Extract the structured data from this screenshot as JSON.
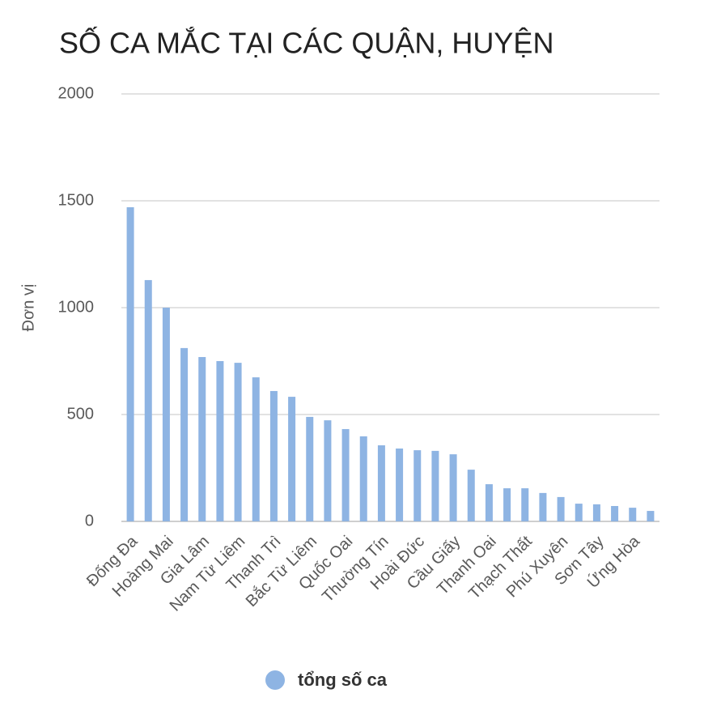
{
  "chart_data": {
    "type": "bar",
    "title": "SỐ CA MẮC TẠI CÁC QUẬN, HUYỆN",
    "y_label": "Đơn vị",
    "categories": [
      "Đống Đa",
      null,
      "Hoàng Mai",
      null,
      "Gia Lâm",
      null,
      "Nam Từ Liêm",
      null,
      "Thanh Trì",
      null,
      "Bắc Từ Liêm",
      null,
      "Quốc Oai",
      null,
      "Thường Tín",
      null,
      "Hoài Đức",
      null,
      "Cầu Giấy",
      null,
      "Thanh Oai",
      null,
      "Thạch Thất",
      null,
      "Phú Xuyên",
      null,
      "Sơn Tây",
      null,
      "Ứng Hòa",
      null
    ],
    "series": [
      {
        "name": "tổng số ca",
        "color": "#8eb4e3",
        "values": [
          1470,
          1129,
          1000,
          811,
          769,
          750,
          742,
          674,
          610,
          583,
          489,
          473,
          432,
          398,
          356,
          341,
          333,
          330,
          314,
          242,
          174,
          155,
          155,
          133,
          114,
          83,
          80,
          72,
          64,
          49
        ]
      }
    ],
    "ylim": [
      0,
      2000
    ],
    "yticks": [
      0,
      500,
      1000,
      1500,
      2000
    ],
    "grid": true,
    "legend": "bottom"
  }
}
